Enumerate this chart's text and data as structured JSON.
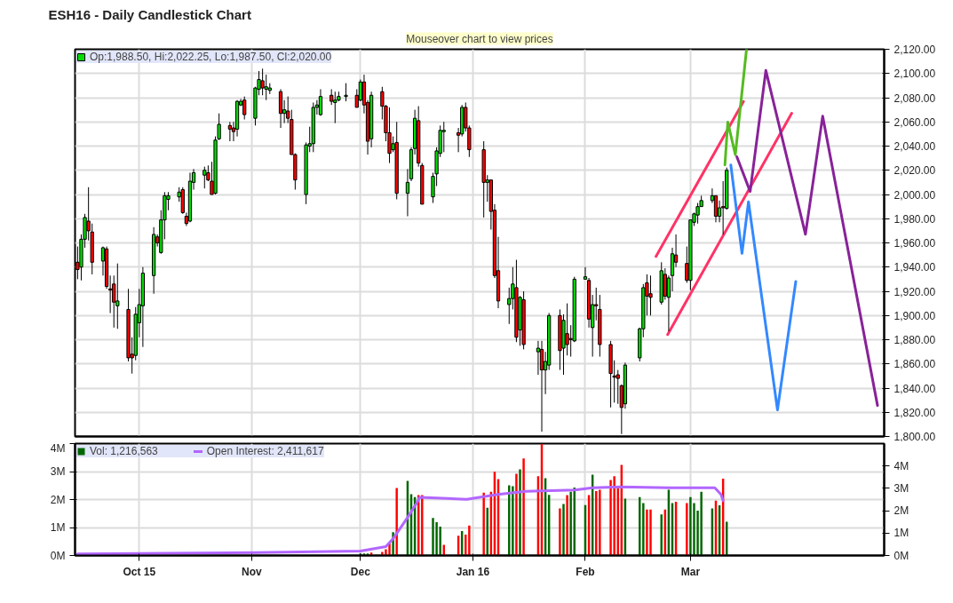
{
  "chart_data": [
    {
      "type": "candlestick",
      "title": "ESH16 - Daily Candlestick Chart",
      "annotations": [
        "Mouseover chart to view prices"
      ],
      "xlim": [
        "2015-09-13T07:00",
        "2016-04-23T10:00"
      ],
      "ylim": [
        1800,
        2120
      ],
      "xticks": [
        {
          "value": "2015-10-01",
          "label": null
        },
        {
          "value": "2015-11-01",
          "label": null
        },
        {
          "value": "2015-12-01",
          "label": null
        },
        {
          "value": "2016-01-01",
          "label": null
        },
        {
          "value": "2016-02-01",
          "label": null
        },
        {
          "value": "2016-03-01",
          "label": null
        }
      ],
      "yticks": [
        {
          "value": 1800,
          "label": "1,800.00"
        },
        {
          "value": 1820,
          "label": "1,820.00"
        },
        {
          "value": 1840,
          "label": "1,840.00"
        },
        {
          "value": 1860,
          "label": "1,860.00"
        },
        {
          "value": 1880,
          "label": "1,880.00"
        },
        {
          "value": 1900,
          "label": "1,900.00"
        },
        {
          "value": 1920,
          "label": "1,920.00"
        },
        {
          "value": 1940,
          "label": "1,940.00"
        },
        {
          "value": 1960,
          "label": "1,960.00"
        },
        {
          "value": 1980,
          "label": "1,980.00"
        },
        {
          "value": 2000,
          "label": "2,000.00"
        },
        {
          "value": 2020,
          "label": "2,020.00"
        },
        {
          "value": 2040,
          "label": "2,040.00"
        },
        {
          "value": 2060,
          "label": "2,060.00"
        },
        {
          "value": 2080,
          "label": "2,080.00"
        },
        {
          "value": 2100,
          "label": "2,100.00"
        },
        {
          "value": 2120,
          "label": "2,120.00"
        }
      ],
      "tick_labels": "y",
      "grid": true,
      "legend": "top left",
      "series": [
        {
          "type": "candlestick",
          "name": "Op:1,988.50, Hi:2,022.25, Lo:1,987.50, Cl:2,020.00",
          "x": [
            "2015-09-14",
            "2015-09-15",
            "2015-09-16",
            "2015-09-17",
            "2015-09-18",
            "2015-09-21",
            "2015-09-22",
            "2015-09-23",
            "2015-09-24",
            "2015-09-25",
            "2015-09-28",
            "2015-09-29",
            "2015-09-30",
            "2015-10-01",
            "2015-10-02",
            "2015-10-05",
            "2015-10-06",
            "2015-10-07",
            "2015-10-08",
            "2015-10-09",
            "2015-10-12",
            "2015-10-13",
            "2015-10-14",
            "2015-10-15",
            "2015-10-16",
            "2015-10-19",
            "2015-10-20",
            "2015-10-21",
            "2015-10-22",
            "2015-10-23",
            "2015-10-26",
            "2015-10-27",
            "2015-10-28",
            "2015-10-29",
            "2015-10-30",
            "2015-11-02",
            "2015-11-03",
            "2015-11-04",
            "2015-11-05",
            "2015-11-06",
            "2015-11-09",
            "2015-11-10",
            "2015-11-11",
            "2015-11-12",
            "2015-11-13",
            "2015-11-16",
            "2015-11-17",
            "2015-11-18",
            "2015-11-19",
            "2015-11-20",
            "2015-11-23",
            "2015-11-24",
            "2015-11-25",
            "2015-11-27",
            "2015-11-30",
            "2015-12-01",
            "2015-12-02",
            "2015-12-03",
            "2015-12-04",
            "2015-12-07",
            "2015-12-08",
            "2015-12-09",
            "2015-12-10",
            "2015-12-11",
            "2015-12-14",
            "2015-12-15",
            "2015-12-16",
            "2015-12-17",
            "2015-12-18",
            "2015-12-21",
            "2015-12-22",
            "2015-12-23",
            "2015-12-24",
            "2015-12-28",
            "2015-12-29",
            "2015-12-30",
            "2015-12-31",
            "2016-01-04",
            "2016-01-05",
            "2016-01-06",
            "2016-01-07",
            "2016-01-08",
            "2016-01-11",
            "2016-01-12",
            "2016-01-13",
            "2016-01-14",
            "2016-01-15",
            "2016-01-19",
            "2016-01-20",
            "2016-01-21",
            "2016-01-22",
            "2016-01-25",
            "2016-01-26",
            "2016-01-27",
            "2016-01-28",
            "2016-01-29",
            "2016-02-01",
            "2016-02-02",
            "2016-02-03",
            "2016-02-04",
            "2016-02-05",
            "2016-02-08",
            "2016-02-09",
            "2016-02-10",
            "2016-02-11",
            "2016-02-12",
            "2016-02-16",
            "2016-02-17",
            "2016-02-18",
            "2016-02-19",
            "2016-02-22",
            "2016-02-23",
            "2016-02-24",
            "2016-02-25",
            "2016-02-26",
            "2016-02-29",
            "2016-03-01",
            "2016-03-02",
            "2016-03-03",
            "2016-03-04",
            "2016-03-07",
            "2016-03-08",
            "2016-03-09",
            "2016-03-10",
            "2016-03-11"
          ],
          "ohlc": [
            [
              1944,
              1957,
              1930,
              1938
            ],
            [
              1940,
              1967,
              1929,
              1963
            ],
            [
              1963,
              1984,
              1956,
              1981
            ],
            [
              1978,
              2006,
              1962,
              1970
            ],
            [
              1969,
              1976,
              1934,
              1944
            ],
            [
              1945,
              1957,
              1933,
              1956
            ],
            [
              1955,
              1957,
              1922,
              1924
            ],
            [
              1922,
              1933,
              1902,
              1921
            ],
            [
              1926,
              1933,
              1890,
              1911
            ],
            [
              1908,
              1943,
              1889,
              1912
            ],
            [
              1905,
              1922,
              1862,
              1865
            ],
            [
              1868,
              1882,
              1852,
              1865
            ],
            [
              1867,
              1907,
              1863,
              1901
            ],
            [
              1894,
              1922,
              1882,
              1909
            ],
            [
              1908,
              1940,
              1874,
              1935
            ],
            [
              1933,
              1973,
              1918,
              1967
            ],
            [
              1965,
              1967,
              1957,
              1960
            ],
            [
              1952,
              1987,
              1951,
              1979
            ],
            [
              1979,
              2002,
              1963,
              1999
            ],
            [
              1996,
              2002,
              1987,
              1999
            ],
            [
              1998,
              2006,
              1994,
              2002
            ],
            [
              2004,
              2006,
              1984,
              1985
            ],
            [
              1982,
              1985,
              1974,
              1976
            ],
            [
              1978,
              2018,
              1977,
              2011
            ],
            [
              2010,
              2021,
              2004,
              2018
            ],
            [
              2016,
              2023,
              2005,
              2020
            ],
            [
              2018,
              2024,
              2011,
              2012
            ],
            [
              2011,
              2027,
              2000,
              2000
            ],
            [
              2001,
              2048,
              2000,
              2045
            ],
            [
              2046,
              2067,
              2045,
              2058
            ],
            [
              2057,
              2060,
              2044,
              2054
            ],
            [
              2055,
              2060,
              2044,
              2052
            ],
            [
              2054,
              2078,
              2048,
              2077
            ],
            [
              2074,
              2079,
              2073,
              2077
            ],
            [
              2078,
              2081,
              2062,
              2066
            ],
            [
              2063,
              2089,
              2057,
              2088
            ],
            [
              2087,
              2102,
              2082,
              2095
            ],
            [
              2094,
              2104,
              2082,
              2088
            ],
            [
              2087,
              2099,
              2078,
              2089
            ],
            [
              2086,
              2092,
              2083,
              2088
            ],
            [
              2085,
              2087,
              2055,
              2067
            ],
            [
              2067,
              2078,
              2059,
              2070
            ],
            [
              2069,
              2081,
              2059,
              2063
            ],
            [
              2062,
              2070,
              2033,
              2033
            ],
            [
              2033,
              2034,
              2004,
              2012
            ],
            [
              2000,
              2043,
              1992,
              2041
            ],
            [
              2040,
              2056,
              2035,
              2042
            ],
            [
              2042,
              2076,
              2035,
              2072
            ],
            [
              2072,
              2078,
              2066,
              2074
            ],
            [
              2066,
              2087,
              2065,
              2081
            ],
            [
              2082,
              2087,
              2074,
              2077
            ],
            [
              2076,
              2085,
              2059,
              2078
            ],
            [
              2078,
              2085,
              2077,
              2081
            ],
            [
              2081,
              2092,
              2077,
              2082
            ],
            [
              2082,
              2087,
              2072,
              2072
            ],
            [
              2078,
              2095,
              2077,
              2093
            ],
            [
              2093,
              2099,
              2067,
              2074
            ],
            [
              2076,
              2078,
              2033,
              2044
            ],
            [
              2046,
              2085,
              2039,
              2082
            ],
            [
              2085,
              2089,
              2062,
              2073
            ],
            [
              2073,
              2074,
              2044,
              2051
            ],
            [
              2051,
              2072,
              2026,
              2034
            ],
            [
              2037,
              2048,
              2035,
              2042
            ],
            [
              2043,
              2060,
              1996,
              2001
            ],
            [
              2001,
              2021,
              1982,
              2010
            ],
            [
              2013,
              2039,
              2011,
              2037
            ],
            [
              2038,
              2070,
              2033,
              2063
            ],
            [
              2061,
              2073,
              2023,
              2026
            ],
            [
              2024,
              2026,
              1992,
              1992
            ],
            [
              1998,
              2018,
              1993,
              2015
            ],
            [
              2017,
              2039,
              2007,
              2036
            ],
            [
              2034,
              2057,
              2031,
              2053
            ],
            [
              2052,
              2060,
              2035,
              2053
            ],
            [
              2051,
              2055,
              2035,
              2049
            ],
            [
              2050,
              2074,
              2048,
              2072
            ],
            [
              2072,
              2076,
              2052,
              2055
            ],
            [
              2055,
              2057,
              2031,
              2037
            ],
            [
              2037,
              2044,
              1981,
              2010
            ],
            [
              2010,
              2016,
              1994,
              2012
            ],
            [
              2012,
              2012,
              1971,
              1986
            ],
            [
              1987,
              1992,
              1931,
              1933
            ],
            [
              1937,
              1965,
              1906,
              1912
            ],
            [
              1909,
              1923,
              1893,
              1914
            ],
            [
              1914,
              1940,
              1905,
              1926
            ],
            [
              1923,
              1946,
              1878,
              1882
            ],
            [
              1888,
              1916,
              1875,
              1915
            ],
            [
              1913,
              1920,
              1872,
              1876
            ],
            [
              1870,
              1879,
              1851,
              1873
            ],
            [
              1872,
              1879,
              1804,
              1855
            ],
            [
              1855,
              1870,
              1835,
              1862
            ],
            [
              1859,
              1902,
              1855,
              1900
            ],
            [
              1900,
              1905,
              1855,
              1871
            ],
            [
              1873,
              1901,
              1851,
              1896
            ],
            [
              1885,
              1910,
              1867,
              1876
            ],
            [
              1881,
              1892,
              1866,
              1880
            ],
            [
              1879,
              1932,
              1878,
              1930
            ],
            [
              1930,
              1940,
              1930,
              1932
            ],
            [
              1929,
              1931,
              1890,
              1897
            ],
            [
              1890,
              1917,
              1866,
              1909
            ],
            [
              1909,
              1923,
              1896,
              1908
            ],
            [
              1905,
              1917,
              1866,
              1876
            ],
            [
              1876,
              1879,
              1824,
              1852
            ],
            [
              1850,
              1863,
              1828,
              1849
            ],
            [
              1851,
              1855,
              1827,
              1848
            ],
            [
              1842,
              1843,
              1802,
              1824
            ],
            [
              1827,
              1861,
              1823,
              1859
            ],
            [
              1865,
              1890,
              1862,
              1889
            ],
            [
              1889,
              1926,
              1882,
              1923
            ],
            [
              1927,
              1934,
              1900,
              1916
            ],
            [
              1918,
              1933,
              1900,
              1915
            ],
            [
              1911,
              1944,
              1909,
              1937
            ],
            [
              1934,
              1939,
              1913,
              1916
            ],
            [
              1915,
              1933,
              1887,
              1931
            ],
            [
              1933,
              1956,
              1920,
              1951
            ],
            [
              1950,
              1967,
              1940,
              1944
            ],
            [
              1943,
              1957,
              1927,
              1929
            ],
            [
              1929,
              1979,
              1921,
              1979
            ],
            [
              1977,
              1985,
              1974,
              1984
            ],
            [
              1983,
              1993,
              1976,
              1990
            ],
            [
              1990,
              1999,
              1990,
              1995
            ],
            [
              1995,
              2005,
              1993,
              1999
            ],
            [
              1999,
              1999,
              1977,
              1982
            ],
            [
              1982,
              1995,
              1977,
              1989
            ],
            [
              1990,
              2011,
              1967,
              1989
            ],
            [
              1988.5,
              2022.25,
              1987.5,
              2020
            ]
          ],
          "colors": [
            "#ff0000",
            "#00dd00",
            "#00dd00",
            "#ff0000",
            "#ff0000",
            "#00dd00",
            "#ff0000",
            "#ff0000",
            "#ff0000",
            "#00dd00",
            "#ff0000",
            "#ff0000",
            "#00dd00",
            "#00dd00",
            "#00dd00",
            "#00dd00",
            "#ff0000",
            "#00dd00",
            "#00dd00",
            "#00dd00",
            "#00dd00",
            "#ff0000",
            "#ff0000",
            "#00dd00",
            "#00dd00",
            "#00dd00",
            "#ff0000",
            "#ff0000",
            "#00dd00",
            "#00dd00",
            "#ff0000",
            "#ff0000",
            "#00dd00",
            "#00dd00",
            "#ff0000",
            "#00dd00",
            "#00dd00",
            "#ff0000",
            "#00dd00",
            "#00dd00",
            "#ff0000",
            "#00dd00",
            "#ff0000",
            "#ff0000",
            "#ff0000",
            "#00dd00",
            "#00dd00",
            "#00dd00",
            "#00dd00",
            "#00dd00",
            "#ff0000",
            "#00dd00",
            "#00dd00",
            "#00dd00",
            "#ff0000",
            "#00dd00",
            "#ff0000",
            "#ff0000",
            "#00dd00",
            "#ff0000",
            "#ff0000",
            "#ff0000",
            "#00dd00",
            "#ff0000",
            "#00dd00",
            "#00dd00",
            "#00dd00",
            "#ff0000",
            "#ff0000",
            "#00dd00",
            "#00dd00",
            "#00dd00",
            "#00dd00",
            "#ff0000",
            "#00dd00",
            "#ff0000",
            "#ff0000",
            "#ff0000",
            "#00dd00",
            "#ff0000",
            "#ff0000",
            "#ff0000",
            "#00dd00",
            "#00dd00",
            "#ff0000",
            "#00dd00",
            "#ff0000",
            "#00dd00",
            "#ff0000",
            "#00dd00",
            "#00dd00",
            "#ff0000",
            "#00dd00",
            "#ff0000",
            "#ff0000",
            "#00dd00",
            "#00dd00",
            "#ff0000",
            "#00dd00",
            "#ff0000",
            "#ff0000",
            "#ff0000",
            "#ff0000",
            "#ff0000",
            "#ff0000",
            "#00dd00",
            "#00dd00",
            "#00dd00",
            "#ff0000",
            "#ff0000",
            "#00dd00",
            "#ff0000",
            "#00dd00",
            "#00dd00",
            "#ff0000",
            "#ff0000",
            "#00dd00",
            "#00dd00",
            "#00dd00",
            "#00dd00",
            "#00dd00",
            "#ff0000",
            "#00dd00",
            "#ff0000",
            "#00dd00"
          ]
        },
        {
          "type": "line",
          "color": "#ff3366",
          "x": [
            "2016-02-20T12:00",
            "2016-03-15T15:00"
          ],
          "values": [
            1948.8,
            2076.8
          ]
        },
        {
          "type": "line",
          "color": "#ff3366",
          "x": [
            "2016-02-23T17:00",
            "2016-03-28T22:00"
          ],
          "values": [
            1884.2,
            2067.1
          ]
        },
        {
          "type": "line",
          "color": "#55bb22",
          "x": [
            "2016-03-10T12:00",
            "2016-03-11T07:00",
            "2016-03-13T09:00",
            "2016-03-16T11:00"
          ],
          "values": [
            2024.4,
            2059.8,
            2032.9,
            2120
          ]
        },
        {
          "type": "line",
          "color": "#3388ff",
          "x": [
            "2016-03-12T03:00",
            "2016-03-15T05:00",
            "2016-03-17",
            "2016-03-25",
            "2016-03-30T01:00"
          ],
          "values": [
            2024.4,
            1951.3,
            1993.9,
            1822,
            1928.1
          ]
        },
        {
          "type": "line",
          "color": "#882299",
          "x": [
            "2016-03-13T19:00",
            "2016-03-17T11:00",
            "2016-03-21T19:00",
            "2016-04-01T17:00",
            "2016-04-06T11:00",
            "2016-04-21T14:00"
          ],
          "values": [
            2031.2,
            2002.5,
            2102.5,
            1967.1,
            2064.7,
            1825.6
          ]
        }
      ]
    },
    {
      "type": "bar",
      "xlim": [
        "2015-09-13T07:00",
        "2016-04-23T10:00"
      ],
      "ylim": [
        0,
        4
      ],
      "y2lim": [
        0,
        5
      ],
      "xticks": [
        {
          "value": "2015-10-01",
          "label": "Oct 15"
        },
        {
          "value": "2015-11-01",
          "label": "Nov"
        },
        {
          "value": "2015-12-01",
          "label": "Dec"
        },
        {
          "value": "2016-01-01",
          "label": "Jan 16"
        },
        {
          "value": "2016-02-01",
          "label": "Feb"
        },
        {
          "value": "2016-03-01",
          "label": "Mar"
        }
      ],
      "yticks": [
        {
          "value": 0,
          "label": "0M"
        },
        {
          "value": 1,
          "label": "1M"
        },
        {
          "value": 2,
          "label": "2M"
        },
        {
          "value": 3,
          "label": "3M"
        },
        {
          "value": 4,
          "label": "4M"
        }
      ],
      "y2ticks": [
        {
          "value": 0,
          "label": "0M"
        },
        {
          "value": 1,
          "label": "1M"
        },
        {
          "value": 2,
          "label": "2M"
        },
        {
          "value": 3,
          "label": "3M"
        },
        {
          "value": 4,
          "label": "4M"
        }
      ],
      "grid": true,
      "legend": "top left",
      "series": [
        {
          "name": "Vol: 1,216,563",
          "color": "#006600",
          "x": [
            "2015-12-01",
            "2015-12-02",
            "2015-12-03",
            "2015-12-04",
            "2015-12-07",
            "2015-12-08",
            "2015-12-09",
            "2015-12-10",
            "2015-12-11",
            "2015-12-14",
            "2015-12-15",
            "2015-12-16",
            "2015-12-17",
            "2015-12-18",
            "2015-12-21",
            "2015-12-22",
            "2015-12-23",
            "2015-12-24",
            "2015-12-28",
            "2015-12-29",
            "2015-12-30",
            "2015-12-31",
            "2016-01-04",
            "2016-01-05",
            "2016-01-06",
            "2016-01-07",
            "2016-01-08",
            "2016-01-11",
            "2016-01-12",
            "2016-01-13",
            "2016-01-14",
            "2016-01-15",
            "2016-01-19",
            "2016-01-20",
            "2016-01-21",
            "2016-01-22",
            "2016-01-25",
            "2016-01-26",
            "2016-01-27",
            "2016-01-28",
            "2016-01-29",
            "2016-02-01",
            "2016-02-02",
            "2016-02-03",
            "2016-02-04",
            "2016-02-05",
            "2016-02-08",
            "2016-02-09",
            "2016-02-10",
            "2016-02-11",
            "2016-02-12",
            "2016-02-16",
            "2016-02-17",
            "2016-02-18",
            "2016-02-19",
            "2016-02-22",
            "2016-02-23",
            "2016-02-24",
            "2016-02-25",
            "2016-02-26",
            "2016-02-29",
            "2016-03-01",
            "2016-03-02",
            "2016-03-03",
            "2016-03-04",
            "2016-03-07",
            "2016-03-08",
            "2016-03-09",
            "2016-03-10",
            "2016-03-11"
          ],
          "values": [
            0.07,
            0.07,
            0.07,
            0.1,
            0.13,
            0.22,
            0.43,
            0.83,
            2.41,
            2.67,
            2.19,
            2.09,
            2.16,
            2.16,
            1.34,
            1.19,
            1.03,
            0.38,
            0.71,
            0.87,
            0.75,
            1.07,
            2.25,
            1.71,
            2.28,
            2.99,
            2.73,
            2.51,
            2.48,
            2.92,
            3.08,
            3.47,
            2.83,
            3.99,
            2.76,
            2.17,
            1.68,
            1.84,
            2.16,
            2.28,
            2.43,
            1.8,
            2.16,
            2.89,
            2.3,
            2.35,
            2.7,
            2.83,
            2.41,
            3.24,
            2.03,
            2.09,
            1.87,
            1.64,
            1.64,
            1.47,
            1.64,
            2.35,
            1.87,
            1.92,
            1.87,
            2.09,
            1.87,
            1.6,
            2.28,
            1.68,
            1.96,
            1.79,
            2.75,
            1.21
          ],
          "colors": [
            "#006600",
            "#006600",
            "#006600",
            "#ff0000",
            "#ff0000",
            "#ff0000",
            "#ff0000",
            "#006600",
            "#ff0000",
            "#006600",
            "#006600",
            "#006600",
            "#ff0000",
            "#ff0000",
            "#006600",
            "#006600",
            "#006600",
            "#ff0000",
            "#ff0000",
            "#006600",
            "#ff0000",
            "#ff0000",
            "#ff0000",
            "#006600",
            "#ff0000",
            "#ff0000",
            "#ff0000",
            "#006600",
            "#006600",
            "#ff0000",
            "#006600",
            "#ff0000",
            "#ff0000",
            "#ff0000",
            "#006600",
            "#006600",
            "#ff0000",
            "#006600",
            "#ff0000",
            "#006600",
            "#006600",
            "#006600",
            "#ff0000",
            "#006600",
            "#ff0000",
            "#ff0000",
            "#ff0000",
            "#ff0000",
            "#ff0000",
            "#ff0000",
            "#006600",
            "#006600",
            "#006600",
            "#ff0000",
            "#ff0000",
            "#006600",
            "#ff0000",
            "#006600",
            "#006600",
            "#ff0000",
            "#ff0000",
            "#006600",
            "#006600",
            "#006600",
            "#006600",
            "#006600",
            "#ff0000",
            "#006600",
            "#ff0000",
            "#006600"
          ]
        },
        {
          "name": "Open Interest: 2,411,617",
          "type": "line",
          "color": "#b266ff",
          "axis": "y2",
          "x": [
            "2015-09-14",
            "2015-11-02",
            "2015-12-01",
            "2015-12-08",
            "2015-12-10",
            "2015-12-14",
            "2015-12-16T17:00",
            "2015-12-17T07:00",
            "2015-12-30T07:00",
            "2016-01-07T22:00",
            "2016-01-15T14:00",
            "2016-01-29T02:00",
            "2016-02-03",
            "2016-02-10T17:00",
            "2016-02-24T05:00",
            "2016-03-07T17:00",
            "2016-03-09T10:00",
            "2016-03-10"
          ],
          "values": [
            0.07,
            0.13,
            0.2,
            0.4,
            0.75,
            1.7,
            2.4,
            2.6,
            2.51,
            2.73,
            2.87,
            2.93,
            3.03,
            3.07,
            3.03,
            3.03,
            2.73,
            2.45
          ]
        }
      ]
    }
  ]
}
